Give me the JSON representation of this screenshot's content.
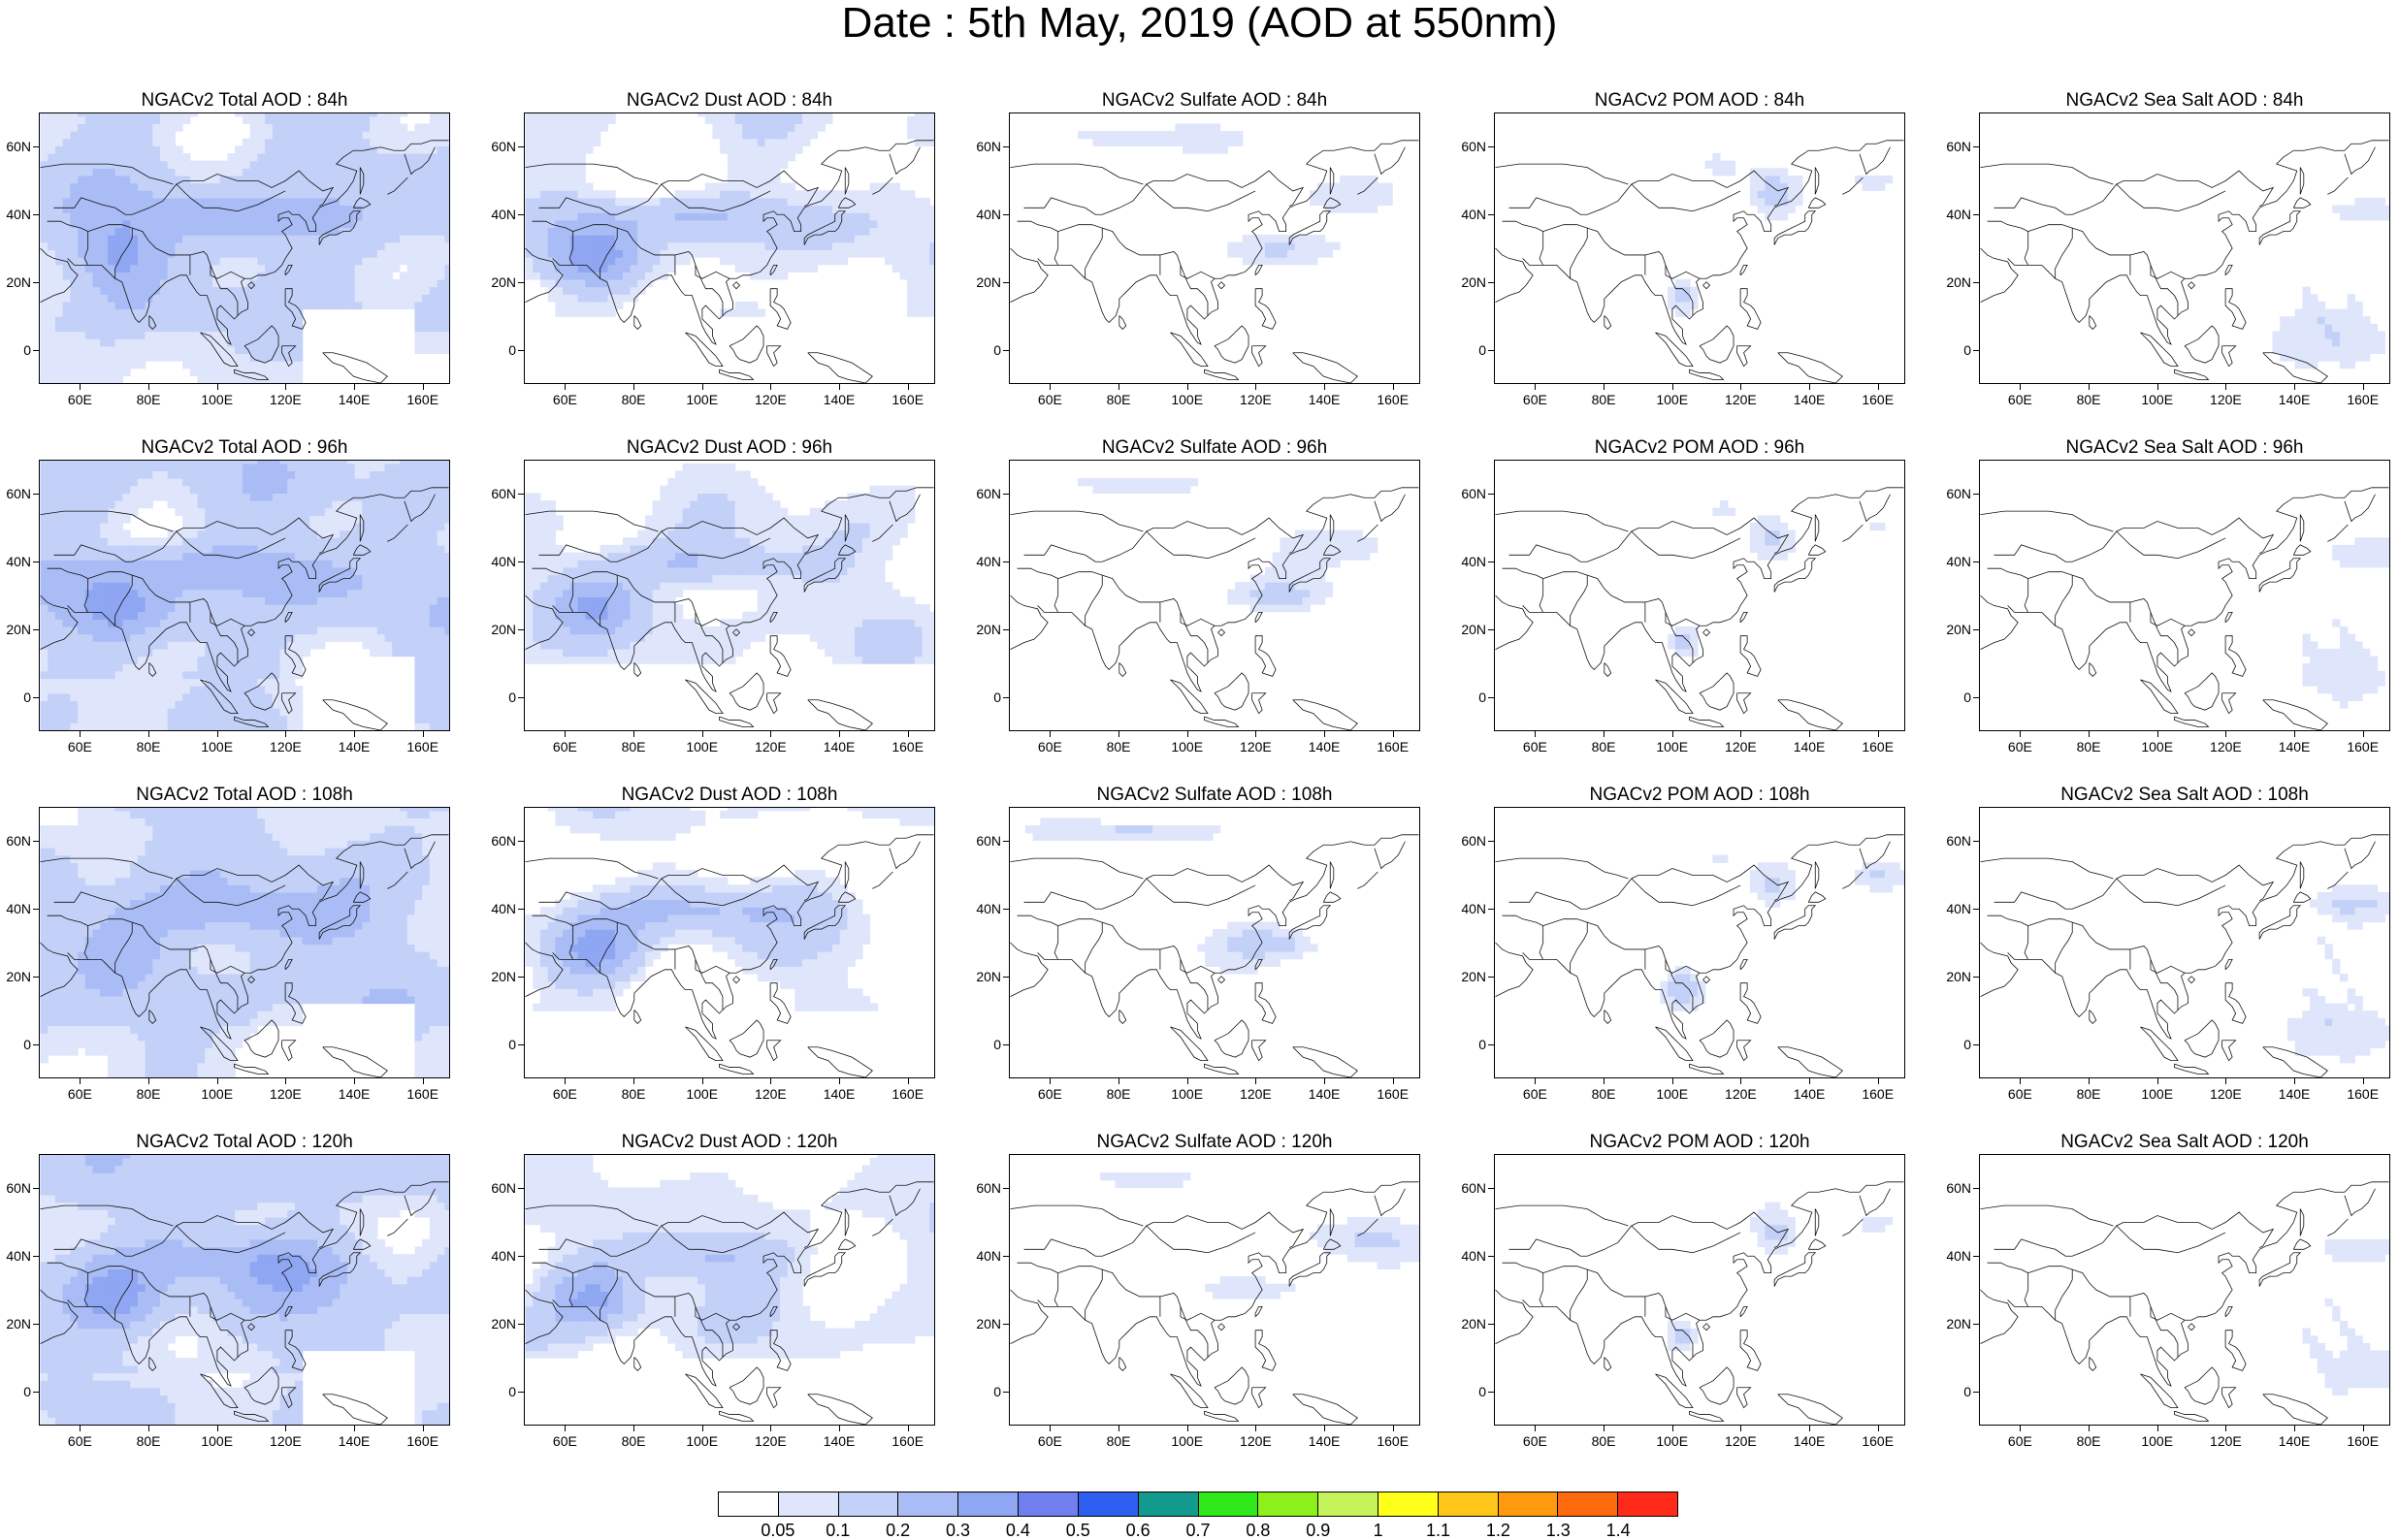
{
  "title": "Date : 5th May, 2019 (AOD at 550nm)",
  "lon_labels": [
    "60E",
    "80E",
    "100E",
    "120E",
    "140E",
    "160E"
  ],
  "lat_labels": [
    "60N",
    "40N",
    "20N",
    "0"
  ],
  "lon_range": [
    48,
    168
  ],
  "lat_range": [
    -10,
    70
  ],
  "rows": [
    {
      "hour": "84h",
      "titles": [
        "NGACv2 Total AOD : 84h",
        "NGACv2 Dust AOD : 84h",
        "NGACv2 Sulfate AOD : 84h",
        "NGACv2 POM AOD : 84h",
        "NGACv2 Sea Salt AOD : 84h"
      ]
    },
    {
      "hour": "96h",
      "titles": [
        "NGACv2 Total AOD : 96h",
        "NGACv2 Dust AOD : 96h",
        "NGACv2 Sulfate AOD : 96h",
        "NGACv2 POM AOD : 96h",
        "NGACv2 Sea Salt AOD : 96h"
      ]
    },
    {
      "hour": "108h",
      "titles": [
        "NGACv2 Total AOD : 108h",
        "NGACv2 Dust AOD : 108h",
        "NGACv2 Sulfate AOD : 108h",
        "NGACv2 POM AOD : 108h",
        "NGACv2 Sea Salt AOD : 108h"
      ]
    },
    {
      "hour": "120h",
      "titles": [
        "NGACv2 Total AOD : 120h",
        "NGACv2 Dust AOD : 120h",
        "NGACv2 Sulfate AOD : 120h",
        "NGACv2 POM AOD : 120h",
        "NGACv2 Sea Salt  AOD : 120h"
      ]
    }
  ],
  "colorbar": {
    "labels": [
      "0.05",
      "0.1",
      "0.2",
      "0.3",
      "0.4",
      "0.5",
      "0.6",
      "0.7",
      "0.8",
      "0.9",
      "1",
      "1.1",
      "1.2",
      "1.3",
      "1.4"
    ],
    "colors": [
      "#ffffff",
      "#dfe6fb",
      "#c3d0f8",
      "#a9bcf5",
      "#8fa6f2",
      "#6f7ff0",
      "#2f5ff0",
      "#129a8f",
      "#2ee81a",
      "#8ef01a",
      "#c4f45a",
      "#ffff1a",
      "#ffc61a",
      "#ff9a0f",
      "#ff6a0f",
      "#ff2a1a"
    ]
  }
}
